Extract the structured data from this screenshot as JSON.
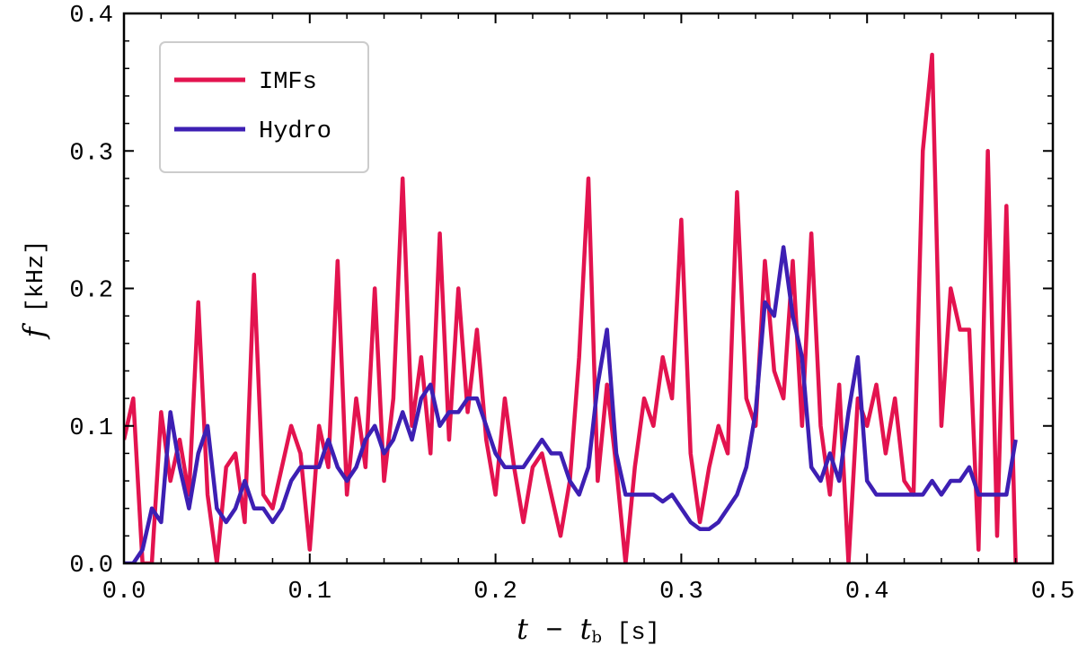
{
  "chart_data": {
    "type": "line",
    "xlabel": [
      "t",
      " − ",
      "t",
      "b",
      " [s]"
    ],
    "ylabel": [
      "f",
      " [kHz]"
    ],
    "x": [
      0,
      0.005,
      0.01,
      0.015,
      0.02,
      0.025,
      0.03,
      0.035,
      0.04,
      0.045,
      0.05,
      0.055,
      0.06,
      0.065,
      0.07,
      0.075,
      0.08,
      0.085,
      0.09,
      0.095,
      0.1,
      0.105,
      0.11,
      0.115,
      0.12,
      0.125,
      0.13,
      0.135,
      0.14,
      0.145,
      0.15,
      0.155,
      0.16,
      0.165,
      0.17,
      0.175,
      0.18,
      0.185,
      0.19,
      0.195,
      0.2,
      0.205,
      0.21,
      0.215,
      0.22,
      0.225,
      0.23,
      0.235,
      0.24,
      0.245,
      0.25,
      0.255,
      0.26,
      0.265,
      0.27,
      0.275,
      0.28,
      0.285,
      0.29,
      0.295,
      0.3,
      0.305,
      0.31,
      0.315,
      0.32,
      0.325,
      0.33,
      0.335,
      0.34,
      0.345,
      0.35,
      0.355,
      0.36,
      0.365,
      0.37,
      0.375,
      0.38,
      0.385,
      0.39,
      0.395,
      0.4,
      0.405,
      0.41,
      0.415,
      0.42,
      0.425,
      0.43,
      0.435,
      0.44,
      0.445,
      0.45,
      0.455,
      0.46,
      0.465,
      0.47,
      0.475,
      0.48
    ],
    "series": [
      {
        "name": "IMFs",
        "color": "#e3134f",
        "values": [
          0.09,
          0.12,
          0.0,
          0.0,
          0.11,
          0.06,
          0.09,
          0.05,
          0.19,
          0.05,
          0.0,
          0.07,
          0.08,
          0.03,
          0.21,
          0.05,
          0.04,
          0.07,
          0.1,
          0.08,
          0.01,
          0.1,
          0.07,
          0.22,
          0.05,
          0.12,
          0.07,
          0.2,
          0.06,
          0.12,
          0.28,
          0.1,
          0.15,
          0.08,
          0.24,
          0.09,
          0.2,
          0.11,
          0.17,
          0.09,
          0.05,
          0.12,
          0.07,
          0.03,
          0.07,
          0.08,
          0.05,
          0.02,
          0.06,
          0.15,
          0.28,
          0.06,
          0.13,
          0.07,
          0.0,
          0.07,
          0.12,
          0.1,
          0.15,
          0.12,
          0.25,
          0.08,
          0.03,
          0.07,
          0.1,
          0.08,
          0.27,
          0.12,
          0.1,
          0.22,
          0.14,
          0.12,
          0.22,
          0.1,
          0.24,
          0.1,
          0.05,
          0.13,
          0.0,
          0.12,
          0.1,
          0.13,
          0.08,
          0.12,
          0.06,
          0.05,
          0.3,
          0.37,
          0.1,
          0.2,
          0.17,
          0.17,
          0.01,
          0.3,
          0.02,
          0.26,
          0.0
        ]
      },
      {
        "name": "Hydro",
        "color": "#3d1fb3",
        "values": [
          0.0,
          0.0,
          0.01,
          0.04,
          0.03,
          0.11,
          0.07,
          0.04,
          0.08,
          0.1,
          0.04,
          0.03,
          0.04,
          0.06,
          0.04,
          0.04,
          0.03,
          0.04,
          0.06,
          0.07,
          0.07,
          0.07,
          0.09,
          0.07,
          0.06,
          0.07,
          0.09,
          0.1,
          0.08,
          0.09,
          0.11,
          0.09,
          0.12,
          0.13,
          0.1,
          0.11,
          0.11,
          0.12,
          0.12,
          0.1,
          0.08,
          0.07,
          0.07,
          0.07,
          0.08,
          0.09,
          0.08,
          0.08,
          0.06,
          0.05,
          0.07,
          0.13,
          0.17,
          0.08,
          0.05,
          0.05,
          0.05,
          0.05,
          0.045,
          0.05,
          0.04,
          0.03,
          0.025,
          0.025,
          0.03,
          0.04,
          0.05,
          0.07,
          0.11,
          0.19,
          0.18,
          0.23,
          0.18,
          0.15,
          0.07,
          0.06,
          0.08,
          0.06,
          0.11,
          0.15,
          0.06,
          0.05,
          0.05,
          0.05,
          0.05,
          0.05,
          0.05,
          0.06,
          0.05,
          0.06,
          0.06,
          0.07,
          0.05,
          0.05,
          0.05,
          0.05,
          0.09
        ]
      }
    ],
    "xlim": [
      0,
      0.5
    ],
    "ylim": [
      0,
      0.4
    ],
    "xticks": [
      {
        "value": 0,
        "label": "0.0"
      },
      0.1,
      0.2,
      0.3,
      0.4,
      0.5
    ],
    "yticks": [
      {
        "value": 0,
        "label": "0.0"
      },
      0.1,
      0.2,
      0.3,
      0.4
    ],
    "legend": "upper left"
  }
}
